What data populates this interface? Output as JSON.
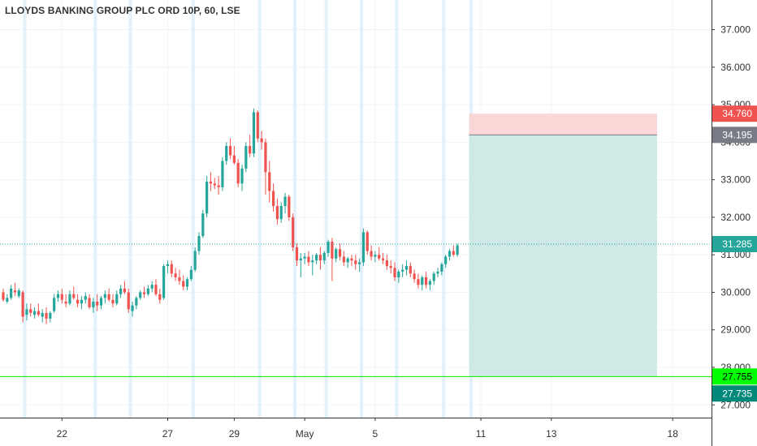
{
  "chart_data": {
    "type": "candlestick",
    "title": "LLOYDS BANKING GROUP PLC ORD 10P, 60, LSE",
    "ylim": [
      26.66,
      37.79
    ],
    "y_ticks": [
      "37.000",
      "36.000",
      "35.000",
      "34.000",
      "33.000",
      "32.000",
      "31.000",
      "30.000",
      "29.000",
      "28.000",
      "27.000"
    ],
    "x_ticks": [
      {
        "label": "22",
        "bar": 15
      },
      {
        "label": "27",
        "bar": 42
      },
      {
        "label": "29",
        "bar": 59
      },
      {
        "label": "May",
        "bar": 77
      },
      {
        "label": "5",
        "bar": 95
      },
      {
        "label": "11",
        "bar": 122
      },
      {
        "label": "13",
        "bar": 140
      },
      {
        "label": "18",
        "bar": 171
      }
    ],
    "day_separators": [
      6,
      24,
      33,
      49,
      66,
      75,
      83,
      92,
      101,
      113,
      120
    ],
    "colors": {
      "up": "#26a69a",
      "down": "#ef5350",
      "current_line": "#26a69a",
      "target_line": "#00e600",
      "stop_zone": "#fbd6d6",
      "profit_zone": "#cfeae6",
      "separator": "#e3f1fb"
    },
    "candles": [
      [
        30.0,
        30.1,
        29.75,
        29.8
      ],
      [
        29.75,
        29.95,
        29.7,
        29.85
      ],
      [
        29.85,
        30.2,
        29.8,
        30.1
      ],
      [
        30.05,
        30.25,
        29.9,
        30.0
      ],
      [
        29.9,
        30.1,
        29.85,
        30.05
      ],
      [
        30.0,
        30.05,
        29.2,
        29.35
      ],
      [
        29.4,
        29.7,
        29.25,
        29.55
      ],
      [
        29.55,
        29.7,
        29.35,
        29.45
      ],
      [
        29.4,
        29.6,
        29.3,
        29.5
      ],
      [
        29.5,
        29.7,
        29.35,
        29.4
      ],
      [
        29.35,
        29.55,
        29.2,
        29.45
      ],
      [
        29.45,
        29.6,
        29.15,
        29.3
      ],
      [
        29.3,
        29.5,
        29.2,
        29.45
      ],
      [
        29.5,
        29.95,
        29.45,
        29.85
      ],
      [
        29.85,
        30.05,
        29.75,
        29.95
      ],
      [
        29.95,
        30.1,
        29.7,
        29.8
      ],
      [
        29.75,
        29.95,
        29.6,
        29.7
      ],
      [
        29.7,
        30.05,
        29.65,
        29.95
      ],
      [
        29.95,
        30.15,
        29.8,
        29.85
      ],
      [
        29.8,
        29.95,
        29.6,
        29.7
      ],
      [
        29.7,
        29.9,
        29.55,
        29.8
      ],
      [
        29.8,
        30.0,
        29.7,
        29.9
      ],
      [
        29.85,
        29.95,
        29.55,
        29.6
      ],
      [
        29.6,
        29.85,
        29.45,
        29.75
      ],
      [
        29.75,
        29.95,
        29.5,
        29.65
      ],
      [
        29.65,
        29.9,
        29.55,
        29.85
      ],
      [
        29.85,
        30.05,
        29.7,
        29.95
      ],
      [
        29.95,
        30.1,
        29.75,
        29.8
      ],
      [
        29.8,
        29.95,
        29.6,
        29.7
      ],
      [
        29.7,
        30.05,
        29.65,
        29.95
      ],
      [
        29.95,
        30.2,
        29.85,
        30.1
      ],
      [
        30.1,
        30.3,
        29.95,
        30.0
      ],
      [
        30.0,
        30.1,
        29.45,
        29.55
      ],
      [
        29.5,
        29.75,
        29.35,
        29.65
      ],
      [
        29.65,
        29.9,
        29.55,
        29.85
      ],
      [
        29.85,
        30.05,
        29.8,
        30.0
      ],
      [
        30.0,
        30.15,
        29.85,
        29.95
      ],
      [
        29.95,
        30.2,
        29.9,
        30.1
      ],
      [
        30.1,
        30.3,
        30.0,
        30.2
      ],
      [
        30.2,
        30.35,
        29.9,
        29.95
      ],
      [
        29.95,
        30.1,
        29.7,
        29.8
      ],
      [
        29.85,
        30.75,
        29.8,
        30.7
      ],
      [
        30.7,
        30.85,
        30.5,
        30.75
      ],
      [
        30.75,
        30.85,
        30.4,
        30.5
      ],
      [
        30.5,
        30.65,
        30.3,
        30.4
      ],
      [
        30.4,
        30.6,
        30.2,
        30.3
      ],
      [
        30.3,
        30.45,
        30.05,
        30.15
      ],
      [
        30.15,
        30.4,
        30.05,
        30.35
      ],
      [
        30.35,
        30.7,
        30.3,
        30.6
      ],
      [
        30.6,
        31.2,
        30.55,
        31.1
      ],
      [
        31.1,
        31.6,
        31.0,
        31.5
      ],
      [
        31.5,
        32.2,
        31.45,
        32.1
      ],
      [
        32.1,
        33.1,
        32.0,
        32.95
      ],
      [
        32.95,
        33.2,
        32.7,
        32.9
      ],
      [
        32.9,
        33.05,
        32.75,
        32.85
      ],
      [
        32.85,
        33.1,
        32.6,
        32.8
      ],
      [
        32.8,
        33.6,
        32.7,
        33.5
      ],
      [
        33.5,
        34.0,
        33.4,
        33.9
      ],
      [
        33.9,
        34.1,
        33.55,
        33.65
      ],
      [
        33.65,
        33.9,
        33.4,
        33.45
      ],
      [
        33.45,
        33.55,
        32.8,
        32.9
      ],
      [
        32.9,
        33.4,
        32.7,
        33.3
      ],
      [
        33.3,
        34.0,
        33.2,
        33.9
      ],
      [
        33.9,
        34.2,
        33.6,
        33.7
      ],
      [
        33.7,
        34.9,
        33.6,
        34.8
      ],
      [
        34.8,
        34.85,
        34.0,
        34.1
      ],
      [
        34.1,
        34.3,
        33.8,
        34.0
      ],
      [
        34.0,
        34.1,
        32.6,
        33.2
      ],
      [
        33.2,
        33.5,
        32.4,
        32.7
      ],
      [
        32.7,
        32.9,
        32.15,
        32.3
      ],
      [
        32.3,
        32.5,
        31.8,
        31.95
      ],
      [
        31.95,
        32.4,
        31.85,
        32.3
      ],
      [
        32.3,
        32.65,
        32.1,
        32.55
      ],
      [
        32.55,
        32.6,
        31.9,
        32.0
      ],
      [
        32.0,
        32.1,
        31.1,
        31.2
      ],
      [
        31.2,
        31.3,
        30.7,
        30.85
      ],
      [
        30.85,
        31.05,
        30.4,
        30.9
      ],
      [
        30.9,
        31.05,
        30.75,
        30.95
      ],
      [
        30.95,
        31.1,
        30.7,
        30.8
      ],
      [
        30.8,
        31.0,
        30.45,
        30.85
      ],
      [
        30.85,
        31.05,
        30.75,
        31.0
      ],
      [
        31.0,
        31.2,
        30.6,
        30.85
      ],
      [
        30.85,
        31.1,
        30.75,
        31.05
      ],
      [
        31.05,
        31.4,
        30.95,
        31.35
      ],
      [
        31.35,
        31.45,
        30.3,
        30.9
      ],
      [
        30.9,
        31.2,
        30.8,
        31.15
      ],
      [
        31.15,
        31.3,
        30.85,
        30.95
      ],
      [
        30.95,
        31.1,
        30.7,
        30.8
      ],
      [
        30.8,
        30.95,
        30.65,
        30.9
      ],
      [
        30.9,
        31.0,
        30.7,
        30.85
      ],
      [
        30.85,
        31.0,
        30.6,
        30.75
      ],
      [
        30.75,
        30.9,
        30.55,
        30.8
      ],
      [
        30.8,
        31.7,
        30.7,
        31.6
      ],
      [
        31.6,
        31.65,
        31.0,
        31.1
      ],
      [
        31.1,
        31.25,
        30.85,
        30.95
      ],
      [
        30.95,
        31.1,
        30.8,
        31.0
      ],
      [
        31.0,
        31.2,
        30.85,
        30.9
      ],
      [
        30.9,
        31.05,
        30.75,
        30.85
      ],
      [
        30.85,
        31.0,
        30.6,
        30.7
      ],
      [
        30.7,
        30.85,
        30.5,
        30.65
      ],
      [
        30.65,
        30.8,
        30.3,
        30.4
      ],
      [
        30.4,
        30.6,
        30.25,
        30.55
      ],
      [
        30.55,
        30.75,
        30.4,
        30.6
      ],
      [
        30.6,
        30.85,
        30.45,
        30.7
      ],
      [
        30.7,
        30.8,
        30.4,
        30.5
      ],
      [
        30.5,
        30.6,
        30.25,
        30.35
      ],
      [
        30.35,
        30.5,
        30.1,
        30.2
      ],
      [
        30.2,
        30.45,
        30.05,
        30.4
      ],
      [
        30.4,
        30.55,
        30.1,
        30.2
      ],
      [
        30.2,
        30.35,
        30.05,
        30.3
      ],
      [
        30.3,
        30.55,
        30.2,
        30.5
      ],
      [
        30.5,
        30.65,
        30.4,
        30.55
      ],
      [
        30.55,
        30.8,
        30.45,
        30.75
      ],
      [
        30.75,
        31.0,
        30.65,
        30.95
      ],
      [
        30.95,
        31.15,
        30.85,
        31.1
      ],
      [
        31.1,
        31.25,
        30.95,
        31.0
      ],
      [
        31.0,
        31.3,
        30.95,
        31.25
      ]
    ],
    "price_lines": {
      "current": {
        "value": 31.285,
        "label": "31.285"
      },
      "target": {
        "value": 27.755,
        "label": "27.755"
      }
    },
    "badges": [
      {
        "label": "34.760",
        "value": 34.76,
        "bg": "#ef5350",
        "fg": "#ffffff"
      },
      {
        "label": "34.195",
        "value": 34.195,
        "bg": "#787b86",
        "fg": "#ffffff"
      },
      {
        "label": "31.285",
        "value": 31.285,
        "bg": "#26a69a",
        "fg": "#ffffff"
      },
      {
        "label": "27.755",
        "value": 27.755,
        "bg": "#00ff00",
        "fg": "#000000"
      },
      {
        "label": "27.735",
        "value": 27.735,
        "bg": "#00897b",
        "fg": "#ffffff",
        "offset": 20
      }
    ],
    "position": {
      "entry": 34.195,
      "stop": 34.76,
      "target": 27.755,
      "start_bar": 119,
      "end_bar": 167
    }
  }
}
